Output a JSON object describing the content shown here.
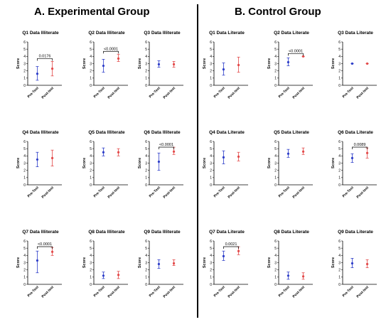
{
  "groups": [
    {
      "title": "A. Experimental Group"
    },
    {
      "title": "B. Control Group"
    }
  ],
  "colors": {
    "pre": "#2f3fc9",
    "post": "#e34a4a",
    "axis": "#000000",
    "bracket": "#000000"
  },
  "chart_data": [
    {
      "type": "scatter",
      "title": "Q1 Data Illiterate",
      "ylabel": "Score",
      "categories": [
        "Pre-Test",
        "Post-test"
      ],
      "ylim": [
        0,
        6
      ],
      "yticks": [
        0,
        1,
        2,
        3,
        4,
        5,
        6
      ],
      "series": [
        {
          "mean": 1.6,
          "lo": 0.7,
          "hi": 2.6
        },
        {
          "mean": 2.3,
          "lo": 1.3,
          "hi": 3.3
        }
      ],
      "annotation": "0.0176"
    },
    {
      "type": "scatter",
      "title": "Q2 Data Illiterate",
      "ylabel": "Score",
      "categories": [
        "Pre-Test",
        "Post-test"
      ],
      "ylim": [
        0,
        6
      ],
      "yticks": [
        0,
        1,
        2,
        3,
        4,
        5,
        6
      ],
      "series": [
        {
          "mean": 2.7,
          "lo": 1.8,
          "hi": 3.6
        },
        {
          "mean": 3.7,
          "lo": 3.3,
          "hi": 4.3
        }
      ],
      "annotation": "<0.0001"
    },
    {
      "type": "scatter",
      "title": "Q3 Data Illiterate",
      "ylabel": "Score",
      "categories": [
        "Pre-Test",
        "Post-test"
      ],
      "ylim": [
        0,
        6
      ],
      "yticks": [
        0,
        1,
        2,
        3,
        4,
        5,
        6
      ],
      "series": [
        {
          "mean": 2.9,
          "lo": 2.5,
          "hi": 3.4
        },
        {
          "mean": 2.9,
          "lo": 2.5,
          "hi": 3.3
        }
      ],
      "annotation": ""
    },
    {
      "type": "scatter",
      "title": "Q1 Data Literate",
      "ylabel": "Score",
      "categories": [
        "Pre-Test",
        "Post-test"
      ],
      "ylim": [
        0,
        6
      ],
      "yticks": [
        0,
        1,
        2,
        3,
        4,
        5,
        6
      ],
      "series": [
        {
          "mean": 2.2,
          "lo": 1.4,
          "hi": 3.1
        },
        {
          "mean": 2.8,
          "lo": 1.8,
          "hi": 3.9
        }
      ],
      "annotation": ""
    },
    {
      "type": "scatter",
      "title": "Q2 Data Literate",
      "ylabel": "Score",
      "categories": [
        "Pre-Test",
        "Post-test"
      ],
      "ylim": [
        0,
        6
      ],
      "yticks": [
        0,
        1,
        2,
        3,
        4,
        5,
        6
      ],
      "series": [
        {
          "mean": 3.2,
          "lo": 2.7,
          "hi": 3.8
        },
        {
          "mean": 4.0,
          "lo": 4.0,
          "hi": 4.0
        }
      ],
      "annotation": "<0.0001"
    },
    {
      "type": "scatter",
      "title": "Q3 Data Literate",
      "ylabel": "Score",
      "categories": [
        "Pre-Test",
        "Post-test"
      ],
      "ylim": [
        0,
        6
      ],
      "yticks": [
        0,
        1,
        2,
        3,
        4,
        5,
        6
      ],
      "series": [
        {
          "mean": 3.0,
          "lo": 3.0,
          "hi": 3.0
        },
        {
          "mean": 3.0,
          "lo": 3.0,
          "hi": 3.0
        }
      ],
      "annotation": ""
    },
    {
      "type": "scatter",
      "title": "Q4 Data Illiterate",
      "ylabel": "Score",
      "categories": [
        "Pre-Test",
        "Post-test"
      ],
      "ylim": [
        0,
        6
      ],
      "yticks": [
        0,
        1,
        2,
        3,
        4,
        5,
        6
      ],
      "series": [
        {
          "mean": 3.5,
          "lo": 2.5,
          "hi": 4.5
        },
        {
          "mean": 3.7,
          "lo": 2.6,
          "hi": 4.8
        }
      ],
      "annotation": ""
    },
    {
      "type": "scatter",
      "title": "Q5 Data Illiterate",
      "ylabel": "Score",
      "categories": [
        "Pre-Test",
        "Post-test"
      ],
      "ylim": [
        0,
        6
      ],
      "yticks": [
        0,
        1,
        2,
        3,
        4,
        5,
        6
      ],
      "series": [
        {
          "mean": 4.5,
          "lo": 4.0,
          "hi": 5.1
        },
        {
          "mean": 4.5,
          "lo": 4.0,
          "hi": 5.0
        }
      ],
      "annotation": ""
    },
    {
      "type": "scatter",
      "title": "Q6 Data Illiterate",
      "ylabel": "Score",
      "categories": [
        "Pre-Test",
        "Post-test"
      ],
      "ylim": [
        0,
        6
      ],
      "yticks": [
        0,
        1,
        2,
        3,
        4,
        5,
        6
      ],
      "series": [
        {
          "mean": 3.2,
          "lo": 2.0,
          "hi": 4.4
        },
        {
          "mean": 4.6,
          "lo": 4.2,
          "hi": 5.2
        }
      ],
      "annotation": "<0.0001"
    },
    {
      "type": "scatter",
      "title": "Q4 Data Literate",
      "ylabel": "Score",
      "categories": [
        "Pre-Test",
        "Post-test"
      ],
      "ylim": [
        0,
        6
      ],
      "yticks": [
        0,
        1,
        2,
        3,
        4,
        5,
        6
      ],
      "series": [
        {
          "mean": 3.8,
          "lo": 2.9,
          "hi": 4.7
        },
        {
          "mean": 3.9,
          "lo": 3.3,
          "hi": 4.5
        }
      ],
      "annotation": ""
    },
    {
      "type": "scatter",
      "title": "Q5 Data Literate",
      "ylabel": "Score",
      "categories": [
        "Pre-Test",
        "Post-test"
      ],
      "ylim": [
        0,
        6
      ],
      "yticks": [
        0,
        1,
        2,
        3,
        4,
        5,
        6
      ],
      "series": [
        {
          "mean": 4.3,
          "lo": 3.8,
          "hi": 4.9
        },
        {
          "mean": 4.6,
          "lo": 4.2,
          "hi": 5.1
        }
      ],
      "annotation": ""
    },
    {
      "type": "scatter",
      "title": "Q6 Data Literate",
      "ylabel": "Score",
      "categories": [
        "Pre-Test",
        "Post-test"
      ],
      "ylim": [
        0,
        6
      ],
      "yticks": [
        0,
        1,
        2,
        3,
        4,
        5,
        6
      ],
      "series": [
        {
          "mean": 3.7,
          "lo": 3.1,
          "hi": 4.3
        },
        {
          "mean": 4.4,
          "lo": 3.7,
          "hi": 5.1
        }
      ],
      "annotation": "0.0089"
    },
    {
      "type": "scatter",
      "title": "Q7 Data Illiterate",
      "ylabel": "Score",
      "categories": [
        "Pre-Test",
        "Post-test"
      ],
      "ylim": [
        0,
        6
      ],
      "yticks": [
        0,
        1,
        2,
        3,
        4,
        5,
        6
      ],
      "series": [
        {
          "mean": 3.3,
          "lo": 1.6,
          "hi": 4.6
        },
        {
          "mean": 4.5,
          "lo": 4.0,
          "hi": 5.1
        }
      ],
      "annotation": "<0.0001"
    },
    {
      "type": "scatter",
      "title": "Q8 Data Illiterate",
      "ylabel": "Score",
      "categories": [
        "Pre-Test",
        "Post-test"
      ],
      "ylim": [
        0,
        6
      ],
      "yticks": [
        0,
        1,
        2,
        3,
        4,
        5,
        6
      ],
      "series": [
        {
          "mean": 1.2,
          "lo": 0.8,
          "hi": 1.7
        },
        {
          "mean": 1.3,
          "lo": 0.8,
          "hi": 1.8
        }
      ],
      "annotation": ""
    },
    {
      "type": "scatter",
      "title": "Q9 Data Illiterate",
      "ylabel": "Score",
      "categories": [
        "Pre-Test",
        "Post-test"
      ],
      "ylim": [
        0,
        6
      ],
      "yticks": [
        0,
        1,
        2,
        3,
        4,
        5,
        6
      ],
      "series": [
        {
          "mean": 2.8,
          "lo": 2.2,
          "hi": 3.4
        },
        {
          "mean": 2.9,
          "lo": 2.6,
          "hi": 3.4
        }
      ],
      "annotation": ""
    },
    {
      "type": "scatter",
      "title": "Q7 Data Literate",
      "ylabel": "Score",
      "categories": [
        "Pre-Test",
        "Post-test"
      ],
      "ylim": [
        0,
        6
      ],
      "yticks": [
        0,
        1,
        2,
        3,
        4,
        5,
        6
      ],
      "series": [
        {
          "mean": 3.9,
          "lo": 3.3,
          "hi": 4.6
        },
        {
          "mean": 4.6,
          "lo": 4.1,
          "hi": 5.2
        }
      ],
      "annotation": "0.0021"
    },
    {
      "type": "scatter",
      "title": "Q8 Data Literate",
      "ylabel": "Score",
      "categories": [
        "Pre-Test",
        "Post-test"
      ],
      "ylim": [
        0,
        6
      ],
      "yticks": [
        0,
        1,
        2,
        3,
        4,
        5,
        6
      ],
      "series": [
        {
          "mean": 1.2,
          "lo": 0.7,
          "hi": 1.7
        },
        {
          "mean": 1.1,
          "lo": 0.7,
          "hi": 1.6
        }
      ],
      "annotation": ""
    },
    {
      "type": "scatter",
      "title": "Q9 Data Literate",
      "ylabel": "Score",
      "categories": [
        "Pre-Test",
        "Post-test"
      ],
      "ylim": [
        0,
        6
      ],
      "yticks": [
        0,
        1,
        2,
        3,
        4,
        5,
        6
      ],
      "series": [
        {
          "mean": 2.9,
          "lo": 2.3,
          "hi": 3.6
        },
        {
          "mean": 2.8,
          "lo": 2.3,
          "hi": 3.4
        }
      ],
      "annotation": ""
    }
  ]
}
